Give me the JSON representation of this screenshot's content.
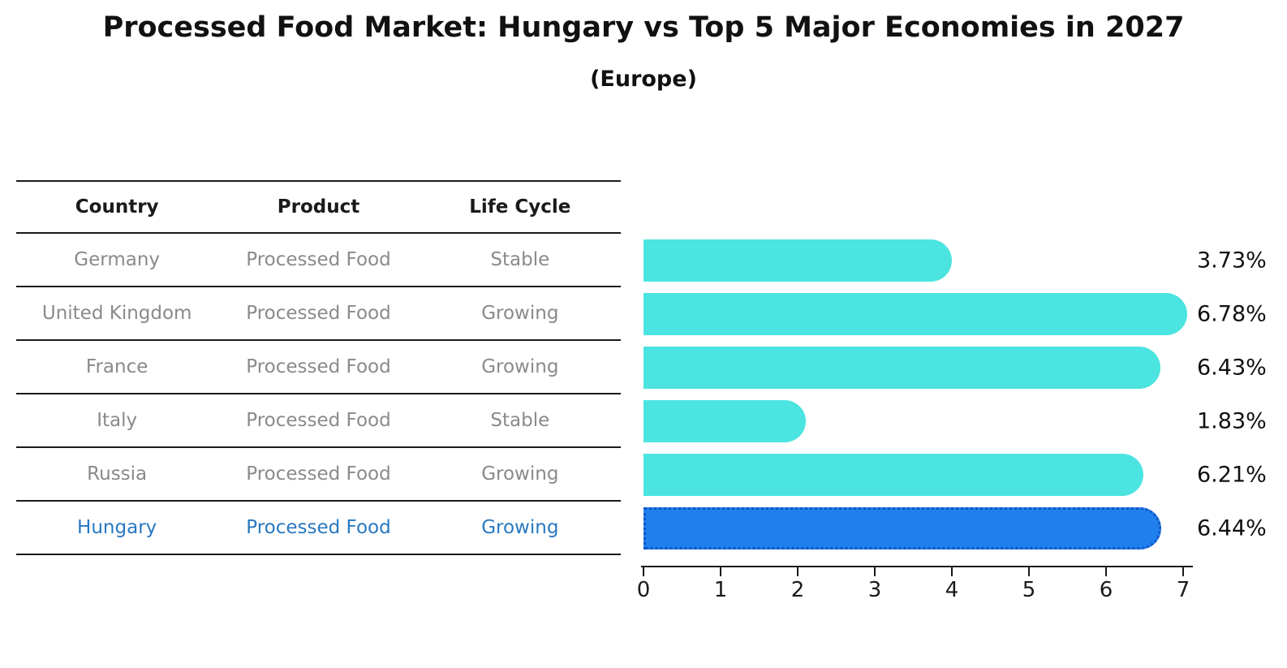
{
  "title": "Processed Food Market: Hungary vs Top 5 Major Economies in 2027",
  "subtitle": "(Europe)",
  "table": {
    "headers": [
      "Country",
      "Product",
      "Life Cycle"
    ],
    "rows": [
      {
        "country": "Germany",
        "product": "Processed Food",
        "life_cycle": "Stable",
        "highlight": false
      },
      {
        "country": "United Kingdom",
        "product": "Processed Food",
        "life_cycle": "Growing",
        "highlight": false
      },
      {
        "country": "France",
        "product": "Processed Food",
        "life_cycle": "Growing",
        "highlight": false
      },
      {
        "country": "Italy",
        "product": "Processed Food",
        "life_cycle": "Stable",
        "highlight": false
      },
      {
        "country": "Russia",
        "product": "Processed Food",
        "life_cycle": "Growing",
        "highlight": true,
        "note": ""
      },
      {
        "country": "Hungary",
        "product": "Processed Food",
        "life_cycle": "Growing",
        "highlight": true
      }
    ]
  },
  "chart_data": {
    "type": "bar",
    "orientation": "horizontal",
    "title": "Processed Food Market: Hungary vs Top 5 Major Economies in 2027 (Europe)",
    "categories": [
      "Germany",
      "United Kingdom",
      "France",
      "Italy",
      "Russia",
      "Hungary"
    ],
    "values": [
      3.73,
      6.78,
      6.43,
      1.83,
      6.21,
      6.44
    ],
    "labels": [
      "3.73%",
      "6.78%",
      "6.43%",
      "1.83%",
      "6.21%",
      "6.44%"
    ],
    "xlabel": "",
    "ylabel": "",
    "xlim": [
      0,
      7
    ],
    "x_ticks": [
      "0",
      "1",
      "2",
      "3",
      "4",
      "5",
      "6",
      "7"
    ],
    "grid": false,
    "legend": false,
    "bar_color": "#4be4e0",
    "highlight_color": "#1f7fec",
    "highlight_border_color": "#1256c6",
    "highlight_index": 5
  },
  "colors": {
    "text_primary": "#111111",
    "text_muted": "#8a8a8a",
    "highlight_text": "#2878c0",
    "axis_line": "#1a1a1a"
  }
}
